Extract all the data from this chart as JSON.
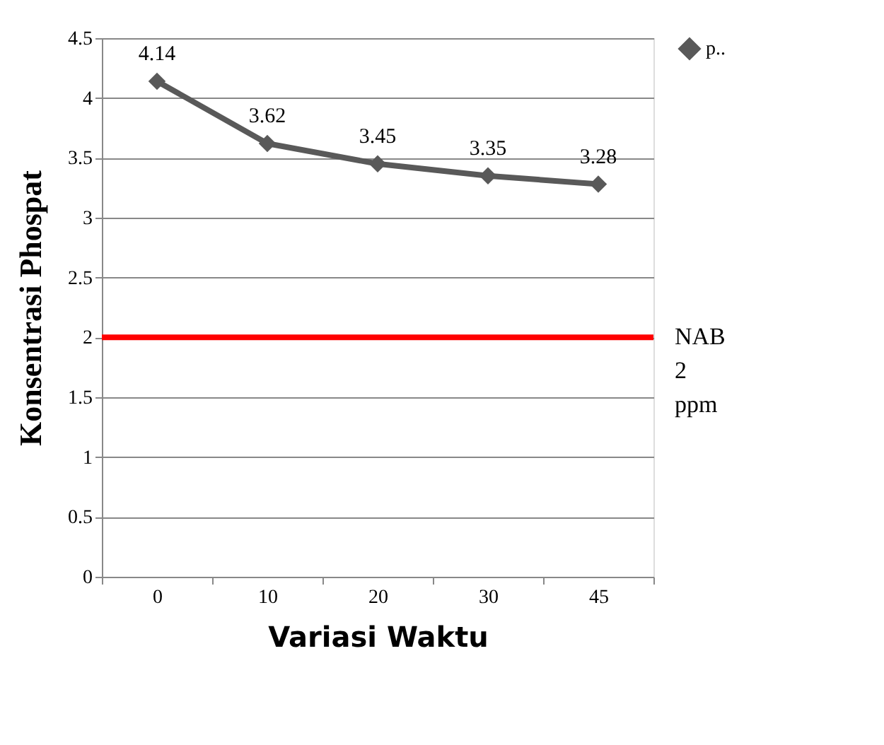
{
  "chart_data": {
    "type": "line",
    "xlabel": "Variasi Waktu",
    "ylabel": "Konsentrasi Phospat",
    "categories": [
      "0",
      "10",
      "20",
      "30",
      "45"
    ],
    "series": [
      {
        "name": "p..",
        "color": "#595959",
        "values": [
          4.14,
          3.62,
          3.45,
          3.35,
          3.28
        ]
      }
    ],
    "ylim": [
      0,
      4.5
    ],
    "yticks": [
      0,
      0.5,
      1,
      1.5,
      2,
      2.5,
      3,
      3.5,
      4,
      4.5
    ],
    "ref_lines": [
      {
        "axis": "y",
        "value": 2,
        "label": "NAB 2 ppm",
        "color": "#ff0000"
      }
    ],
    "grid": "y",
    "legend": "right",
    "marker": "diamond",
    "data_labels": true
  }
}
